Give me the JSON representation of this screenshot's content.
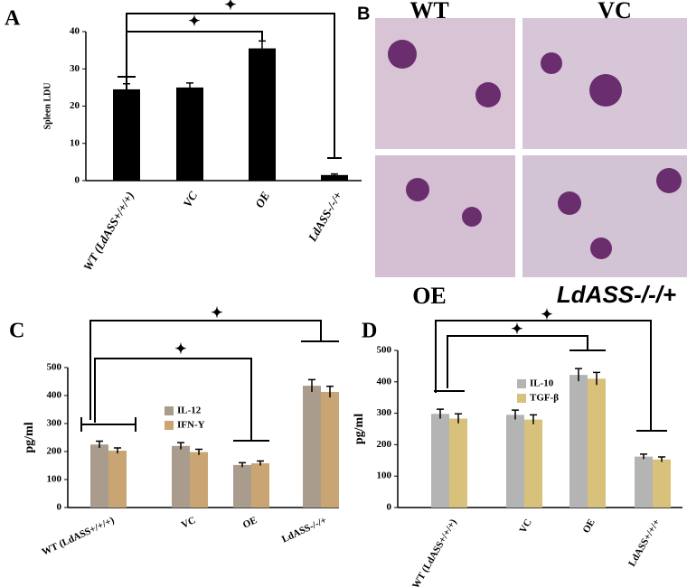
{
  "chart_data": [
    {
      "type": "bar",
      "panel": "A",
      "ylabel": "Spleen LDU",
      "categories": [
        "WT (LdASS+/+/+)",
        "VC",
        "OE",
        "LdASS-/-/+"
      ],
      "values": [
        24.5,
        25,
        35.5,
        1.5
      ],
      "errors": [
        1.5,
        1.2,
        2,
        0.3
      ],
      "color": "#000000",
      "ylim": [
        0,
        40
      ],
      "yticks": [
        0,
        10,
        20,
        30,
        40
      ],
      "annotations": [
        "✦",
        "✦"
      ]
    },
    {
      "type": "grouped_bar",
      "panel": "C",
      "ylabel": "pg/ml",
      "categories": [
        "WT (LdASS+/+/+)",
        "VC",
        "OE",
        "LdASS-/-/+"
      ],
      "series": [
        {
          "name": "IL-12",
          "color": "#a99c8c",
          "values": [
            225,
            220,
            152,
            435
          ],
          "errors": [
            12,
            12,
            8,
            22
          ]
        },
        {
          "name": "IFN-Y",
          "color": "#c9a574",
          "values": [
            203,
            198,
            158,
            413
          ],
          "errors": [
            10,
            10,
            8,
            20
          ]
        }
      ],
      "ylim": [
        0,
        500
      ],
      "yticks": [
        0,
        100,
        200,
        300,
        400,
        500
      ],
      "annotations": [
        "✦",
        "✦"
      ]
    },
    {
      "type": "grouped_bar",
      "panel": "D",
      "ylabel": "pg/ml",
      "categories": [
        "WT (LdASS+/+/+)",
        "VC",
        "OE",
        "LdASS+/+/+"
      ],
      "series": [
        {
          "name": "IL-10",
          "color": "#b4b4b4",
          "values": [
            298,
            295,
            422,
            162
          ],
          "errors": [
            15,
            15,
            20,
            8
          ]
        },
        {
          "name": "TGF-β",
          "color": "#d8c17a",
          "values": [
            283,
            280,
            410,
            153
          ],
          "errors": [
            15,
            15,
            20,
            8
          ]
        }
      ],
      "ylim": [
        0,
        500
      ],
      "yticks": [
        0,
        100,
        200,
        300,
        400,
        500
      ],
      "annotations": [
        "✦",
        "✦"
      ]
    }
  ],
  "micrographs": {
    "panel": "B",
    "labels": [
      "WT",
      "VC",
      "OE",
      "LdASS-/-/+"
    ]
  }
}
